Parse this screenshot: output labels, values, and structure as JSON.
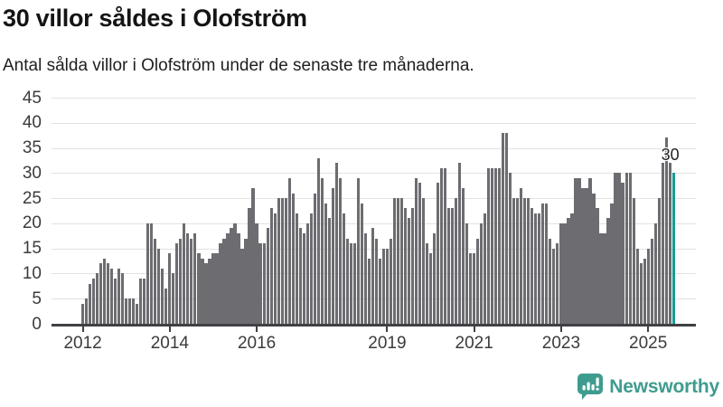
{
  "title": "30 villor såldes i Olofström",
  "subtitle": "Antal sålda villor i Olofström under de senaste tre månaderna.",
  "annotation": {
    "label": "30"
  },
  "footer": {
    "brand": "Newsworthy"
  },
  "colors": {
    "bar": "#6c6c71",
    "highlight": "#169b94",
    "grid": "#e2e2e2",
    "axis": "#404045",
    "brand": "#3e9c8f"
  },
  "chart_data": {
    "type": "bar",
    "title": "30 villor såldes i Olofström",
    "subtitle": "Antal sålda villor i Olofström under de senaste tre månaderna.",
    "ylabel": "",
    "xlabel": "",
    "ylim": [
      0,
      45
    ],
    "yticks": [
      0,
      5,
      10,
      15,
      20,
      25,
      30,
      35,
      40,
      45
    ],
    "xticks": [
      {
        "label": "2012",
        "month_index": 0
      },
      {
        "label": "2014",
        "month_index": 24
      },
      {
        "label": "2016",
        "month_index": 48
      },
      {
        "label": "2019",
        "month_index": 84
      },
      {
        "label": "2021",
        "month_index": 108
      },
      {
        "label": "2023",
        "month_index": 132
      },
      {
        "label": "2025",
        "month_index": 156
      }
    ],
    "grid": true,
    "legend": false,
    "series": [
      {
        "year": 2012,
        "values": [
          4,
          5,
          8,
          9,
          10,
          12,
          13,
          12,
          11,
          9,
          11,
          10
        ]
      },
      {
        "year": 2013,
        "values": [
          5,
          5,
          5,
          4,
          9,
          9,
          20,
          20,
          17,
          15,
          11,
          7
        ]
      },
      {
        "year": 2014,
        "values": [
          14,
          10,
          16,
          17,
          20,
          18,
          17,
          18,
          14,
          13,
          12,
          13
        ]
      },
      {
        "year": 2015,
        "values": [
          14,
          14,
          16,
          17,
          18,
          19,
          20,
          18,
          15,
          17,
          23,
          27
        ]
      },
      {
        "year": 2016,
        "values": [
          20,
          16,
          16,
          19,
          23,
          22,
          25,
          25,
          25,
          29,
          26,
          22
        ]
      },
      {
        "year": 2017,
        "values": [
          19,
          18,
          20,
          22,
          26,
          33,
          29,
          24,
          21,
          27,
          32,
          29
        ]
      },
      {
        "year": 2018,
        "values": [
          22,
          17,
          16,
          16,
          29,
          24,
          18,
          13,
          19,
          17,
          13,
          15
        ]
      },
      {
        "year": 2019,
        "values": [
          15,
          17,
          25,
          25,
          25,
          23,
          21,
          23,
          29,
          28,
          25,
          16
        ]
      },
      {
        "year": 2020,
        "values": [
          14,
          18,
          28,
          31,
          31,
          23,
          23,
          25,
          32,
          27,
          20,
          14
        ]
      },
      {
        "year": 2021,
        "values": [
          14,
          17,
          20,
          22,
          31,
          31,
          31,
          31,
          38,
          38,
          30,
          25
        ]
      },
      {
        "year": 2022,
        "values": [
          25,
          27,
          25,
          25,
          23,
          22,
          22,
          24,
          24,
          17,
          15,
          16
        ]
      },
      {
        "year": 2023,
        "values": [
          20,
          20,
          21,
          22,
          29,
          29,
          27,
          27,
          29,
          26,
          23,
          18
        ]
      },
      {
        "year": 2024,
        "values": [
          18,
          21,
          24,
          30,
          30,
          28,
          30,
          30,
          25,
          15,
          12,
          13
        ]
      },
      {
        "year": 2025,
        "values": [
          15,
          17,
          20,
          25,
          32,
          37,
          32,
          30
        ]
      }
    ],
    "highlight_last_bar": true,
    "highlight_value": 30
  }
}
